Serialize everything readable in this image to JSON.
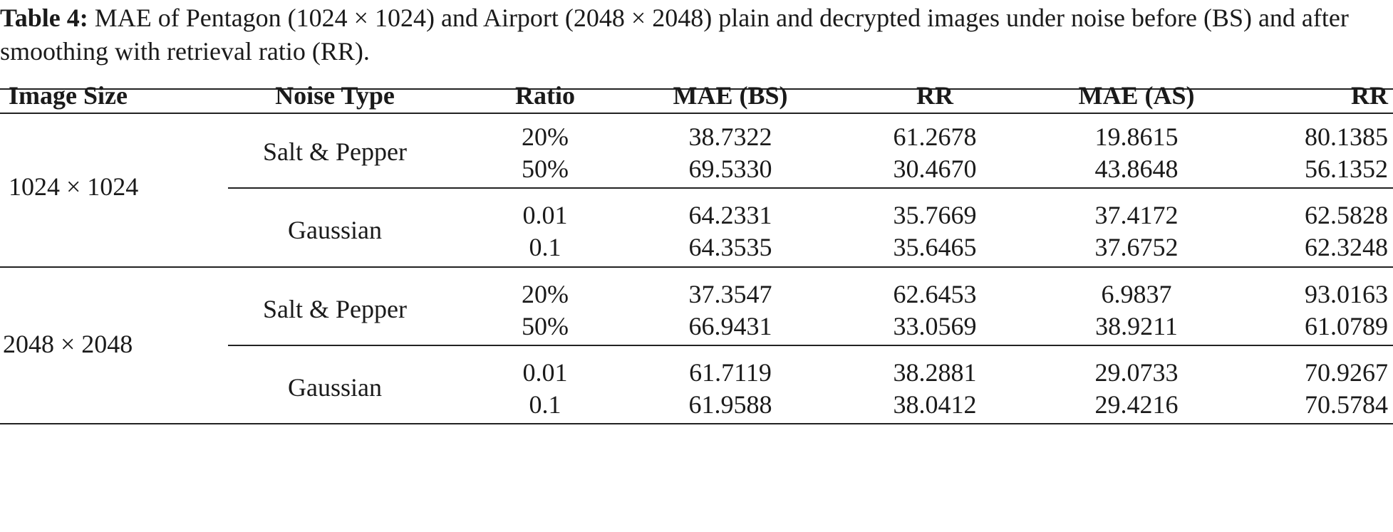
{
  "caption": {
    "label": "Table 4:",
    "text": " MAE of Pentagon (1024 × 1024) and Airport (2048 × 2048) plain and decrypted images under noise before (BS) and after smoothing with retrieval ratio (RR)."
  },
  "table": {
    "headers": [
      "Image Size",
      "Noise Type",
      "Ratio",
      "MAE (BS)",
      "RR",
      "MAE (AS)",
      "RR"
    ],
    "groups": [
      {
        "size": "1024 × 1024",
        "noises": [
          {
            "type": "Salt & Pepper",
            "rows": [
              [
                "20%",
                "38.7322",
                "61.2678",
                "19.8615",
                "80.1385"
              ],
              [
                "50%",
                "69.5330",
                "30.4670",
                "43.8648",
                "56.1352"
              ]
            ]
          },
          {
            "type": "Gaussian",
            "rows": [
              [
                "0.01",
                "64.2331",
                "35.7669",
                "37.4172",
                "62.5828"
              ],
              [
                "0.1",
                "64.3535",
                "35.6465",
                "37.6752",
                "62.3248"
              ]
            ]
          }
        ]
      },
      {
        "size": "2048 × 2048",
        "noises": [
          {
            "type": "Salt & Pepper",
            "rows": [
              [
                "20%",
                "37.3547",
                "62.6453",
                "6.9837",
                "93.0163"
              ],
              [
                "50%",
                "66.9431",
                "33.0569",
                "38.9211",
                "61.0789"
              ]
            ]
          },
          {
            "type": "Gaussian",
            "rows": [
              [
                "0.01",
                "61.7119",
                "38.2881",
                "29.0733",
                "70.9267"
              ],
              [
                "0.1",
                "61.9588",
                "38.0412",
                "29.4216",
                "70.5784"
              ]
            ]
          }
        ]
      }
    ]
  }
}
